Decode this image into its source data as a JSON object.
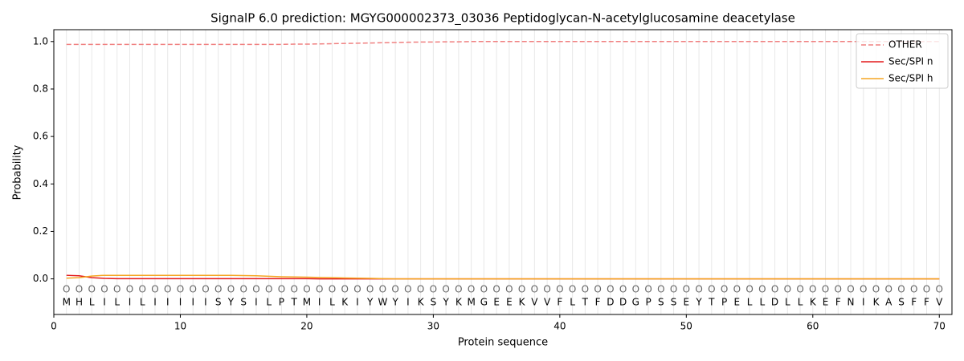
{
  "chart_data": {
    "type": "line",
    "title": "SignalP 6.0 prediction: MGYG000002373_03036 Peptidoglycan-N-acetylglucosamine deacetylase",
    "xlabel": "Protein sequence",
    "ylabel": "Probability",
    "x": [
      1,
      2,
      3,
      4,
      5,
      6,
      7,
      8,
      9,
      10,
      11,
      12,
      13,
      14,
      15,
      16,
      17,
      18,
      19,
      20,
      21,
      22,
      23,
      24,
      25,
      26,
      27,
      28,
      29,
      30,
      31,
      32,
      33,
      34,
      35,
      36,
      37,
      38,
      39,
      40,
      41,
      42,
      43,
      44,
      45,
      46,
      47,
      48,
      49,
      50,
      51,
      52,
      53,
      54,
      55,
      56,
      57,
      58,
      59,
      60,
      61,
      62,
      63,
      64,
      65,
      66,
      67,
      68,
      69,
      70
    ],
    "residues": [
      "M",
      "H",
      "L",
      "I",
      "L",
      "I",
      "L",
      "I",
      "I",
      "I",
      "I",
      "I",
      "S",
      "Y",
      "S",
      "I",
      "L",
      "P",
      "T",
      "M",
      "I",
      "L",
      "K",
      "I",
      "Y",
      "W",
      "Y",
      "I",
      "K",
      "S",
      "Y",
      "K",
      "M",
      "G",
      "E",
      "E",
      "K",
      "V",
      "V",
      "F",
      "L",
      "T",
      "F",
      "D",
      "D",
      "G",
      "P",
      "S",
      "S",
      "E",
      "Y",
      "T",
      "P",
      "E",
      "L",
      "L",
      "D",
      "L",
      "L",
      "K",
      "E",
      "F",
      "N",
      "I",
      "K",
      "A",
      "S",
      "F",
      "F",
      "V"
    ],
    "residue_labels": [
      "O",
      "O",
      "O",
      "O",
      "O",
      "O",
      "O",
      "O",
      "O",
      "O",
      "O",
      "O",
      "O",
      "O",
      "O",
      "O",
      "O",
      "O",
      "O",
      "O",
      "O",
      "O",
      "O",
      "O",
      "O",
      "O",
      "O",
      "O",
      "O",
      "O",
      "O",
      "O",
      "O",
      "O",
      "O",
      "O",
      "O",
      "O",
      "O",
      "O",
      "O",
      "O",
      "O",
      "O",
      "O",
      "O",
      "O",
      "O",
      "O",
      "O",
      "O",
      "O",
      "O",
      "O",
      "O",
      "O",
      "O",
      "O",
      "O",
      "O",
      "O",
      "O",
      "O",
      "O",
      "O",
      "O",
      "O",
      "O",
      "O",
      "O"
    ],
    "series": [
      {
        "name": "OTHER",
        "color": "#f08080",
        "style": "dashed",
        "values": [
          0.988,
          0.988,
          0.988,
          0.988,
          0.988,
          0.988,
          0.988,
          0.988,
          0.988,
          0.988,
          0.988,
          0.988,
          0.988,
          0.988,
          0.988,
          0.988,
          0.988,
          0.988,
          0.989,
          0.989,
          0.99,
          0.991,
          0.992,
          0.993,
          0.994,
          0.995,
          0.996,
          0.997,
          0.998,
          0.998,
          0.999,
          0.999,
          1,
          1,
          1,
          1,
          1,
          1,
          1,
          1,
          1,
          1,
          1,
          1,
          1,
          1,
          1,
          1,
          1,
          1,
          1,
          1,
          1,
          1,
          1,
          1,
          1,
          1,
          1,
          1,
          1,
          1,
          1,
          1,
          1,
          1,
          1,
          1,
          1,
          1
        ]
      },
      {
        "name": "Sec/SPI n",
        "color": "#e31a1c",
        "style": "solid",
        "values": [
          0.015,
          0.013,
          0.005,
          0.002,
          0.001,
          0.001,
          0.001,
          0.001,
          0.001,
          0.001,
          0.001,
          0.001,
          0.001,
          0.001,
          0.001,
          0.001,
          0.001,
          0.001,
          0.001,
          0.001,
          0,
          0,
          0,
          0,
          0,
          0,
          0,
          0,
          0,
          0,
          0,
          0,
          0,
          0,
          0,
          0,
          0,
          0,
          0,
          0,
          0,
          0,
          0,
          0,
          0,
          0,
          0,
          0,
          0,
          0,
          0,
          0,
          0,
          0,
          0,
          0,
          0,
          0,
          0,
          0,
          0,
          0,
          0,
          0,
          0,
          0,
          0,
          0,
          0,
          0
        ]
      },
      {
        "name": "Sec/SPI h",
        "color": "#f5a623",
        "style": "solid",
        "values": [
          0.003,
          0.005,
          0.012,
          0.015,
          0.015,
          0.015,
          0.015,
          0.015,
          0.015,
          0.015,
          0.015,
          0.015,
          0.015,
          0.015,
          0.014,
          0.013,
          0.011,
          0.009,
          0.008,
          0.007,
          0.006,
          0.005,
          0.004,
          0.003,
          0.002,
          0.001,
          0,
          0,
          0,
          0,
          0,
          0,
          0,
          0,
          0,
          0,
          0,
          0,
          0,
          0,
          0,
          0,
          0,
          0,
          0,
          0,
          0,
          0,
          0,
          0,
          0,
          0,
          0,
          0,
          0,
          0,
          0,
          0,
          0,
          0,
          0,
          0,
          0,
          0,
          0,
          0,
          0,
          0,
          0,
          0
        ]
      }
    ],
    "xlim": [
      0,
      71
    ],
    "ylim": [
      -0.15,
      1.05
    ],
    "xticks": [
      0,
      10,
      20,
      30,
      40,
      50,
      60,
      70
    ],
    "yticks": [
      {
        "value": 0,
        "label": "0.0"
      },
      {
        "value": 0.2,
        "label": "0.2"
      },
      {
        "value": 0.4,
        "label": "0.4"
      },
      {
        "value": 0.6,
        "label": "0.6"
      },
      {
        "value": 0.8,
        "label": "0.8"
      },
      {
        "value": 1,
        "label": "1.0"
      }
    ],
    "legend": "upper right"
  }
}
